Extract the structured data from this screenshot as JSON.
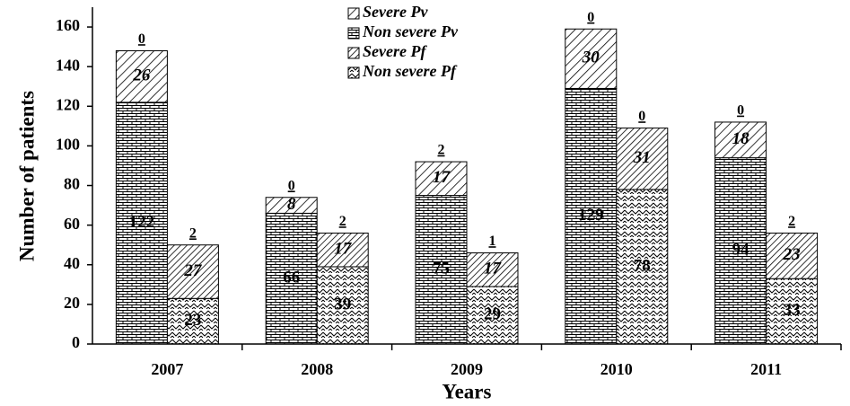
{
  "chart_data": {
    "type": "bar",
    "stacked": true,
    "ylabel": "Number of patients",
    "xlabel": "Years",
    "categories": [
      "2007",
      "2008",
      "2009",
      "2010",
      "2011"
    ],
    "ylim": [
      0,
      170
    ],
    "yticks": [
      0,
      20,
      40,
      60,
      80,
      100,
      120,
      140,
      160
    ],
    "series": [
      {
        "name": "Severe Pv",
        "stack": 0,
        "color": "#000000",
        "pattern": "diagonal",
        "values": [
          26,
          8,
          17,
          30,
          18
        ]
      },
      {
        "name": "Non severe Pv",
        "stack": 0,
        "color": "#000000",
        "pattern": "brick",
        "values": [
          122,
          66,
          75,
          129,
          94
        ]
      },
      {
        "name": "Severe Pf",
        "stack": 1,
        "color": "#000000",
        "pattern": "dense-diagonal",
        "values": [
          27,
          17,
          17,
          31,
          23
        ]
      },
      {
        "name": "Non severe Pf",
        "stack": 1,
        "color": "#000000",
        "pattern": "zigzag",
        "values": [
          23,
          39,
          29,
          78,
          33
        ]
      }
    ],
    "stack_order": [
      [
        1,
        0
      ],
      [
        3,
        2
      ]
    ],
    "stack_top_labels": [
      [
        0,
        0,
        2,
        0,
        0
      ],
      [
        2,
        2,
        1,
        0,
        2
      ]
    ]
  }
}
